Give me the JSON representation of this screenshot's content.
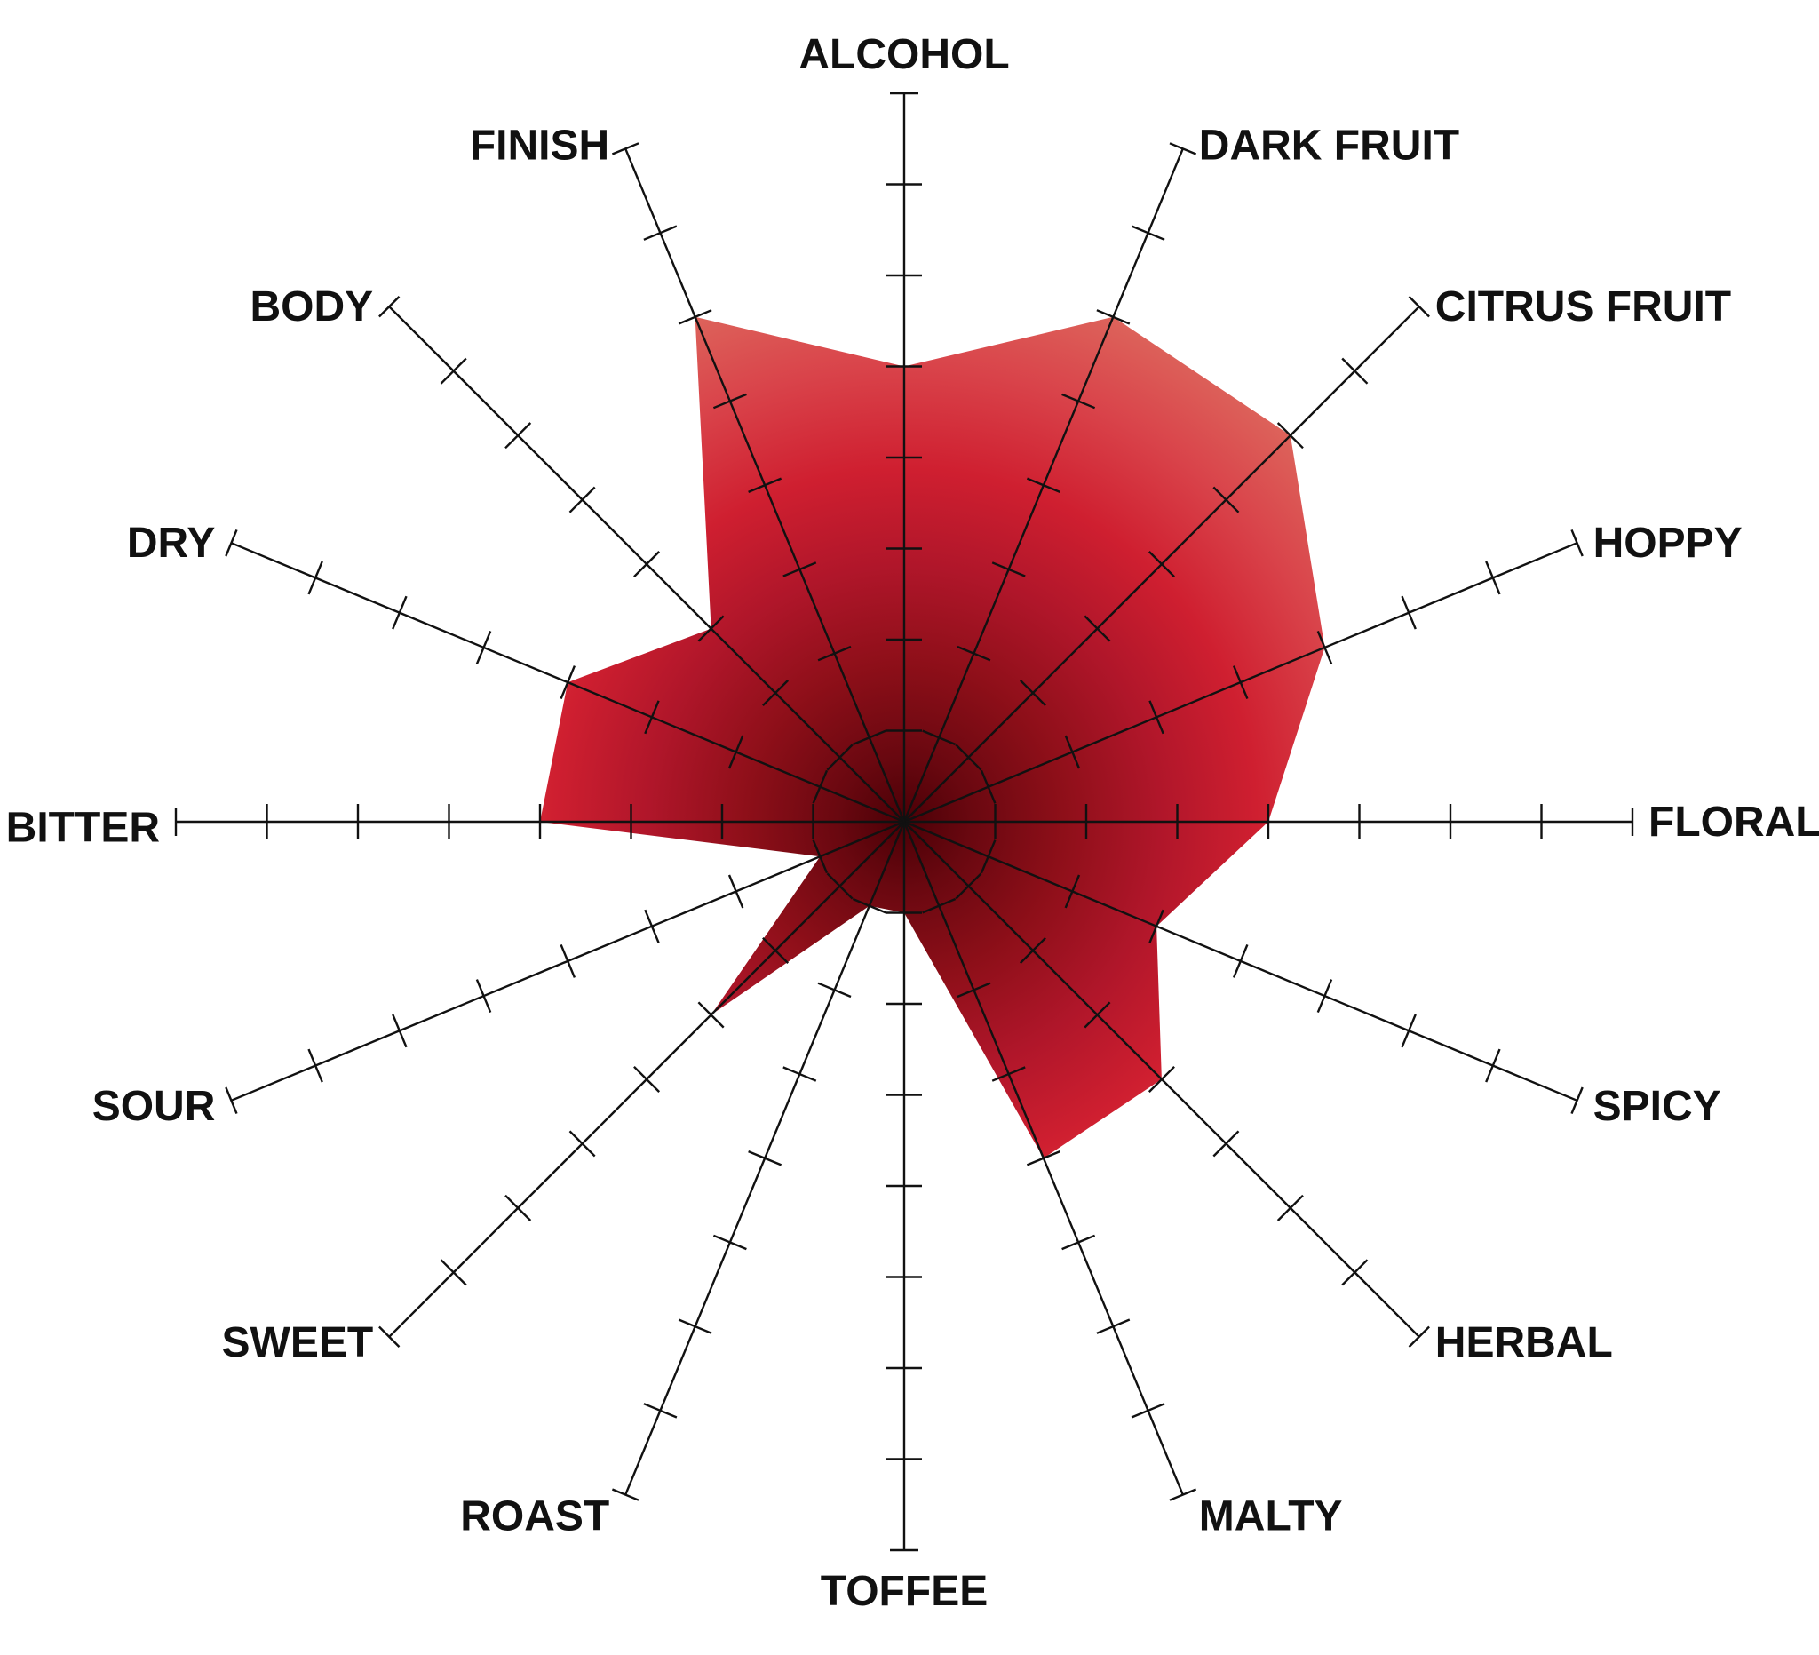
{
  "chart_data": {
    "type": "radar",
    "axes": [
      "ALCOHOL",
      "DARK FRUIT",
      "CITRUS FRUIT",
      "HOPPY",
      "FLORAL",
      "SPICY",
      "HERBAL",
      "MALTY",
      "TOFFEE",
      "ROAST",
      "SWEET",
      "SOUR",
      "BITTER",
      "DRY",
      "BODY",
      "FINISH"
    ],
    "scale": {
      "min": 0,
      "max": 8,
      "ticks": 8
    },
    "grid": false,
    "series": [
      {
        "values": [
          5.0,
          6.0,
          6.0,
          5.0,
          4.0,
          3.0,
          4.0,
          4.0,
          1.0,
          1.0,
          3.0,
          1.0,
          4.0,
          4.0,
          3.0,
          6.0
        ],
        "color": "#c8202e"
      }
    ]
  }
}
